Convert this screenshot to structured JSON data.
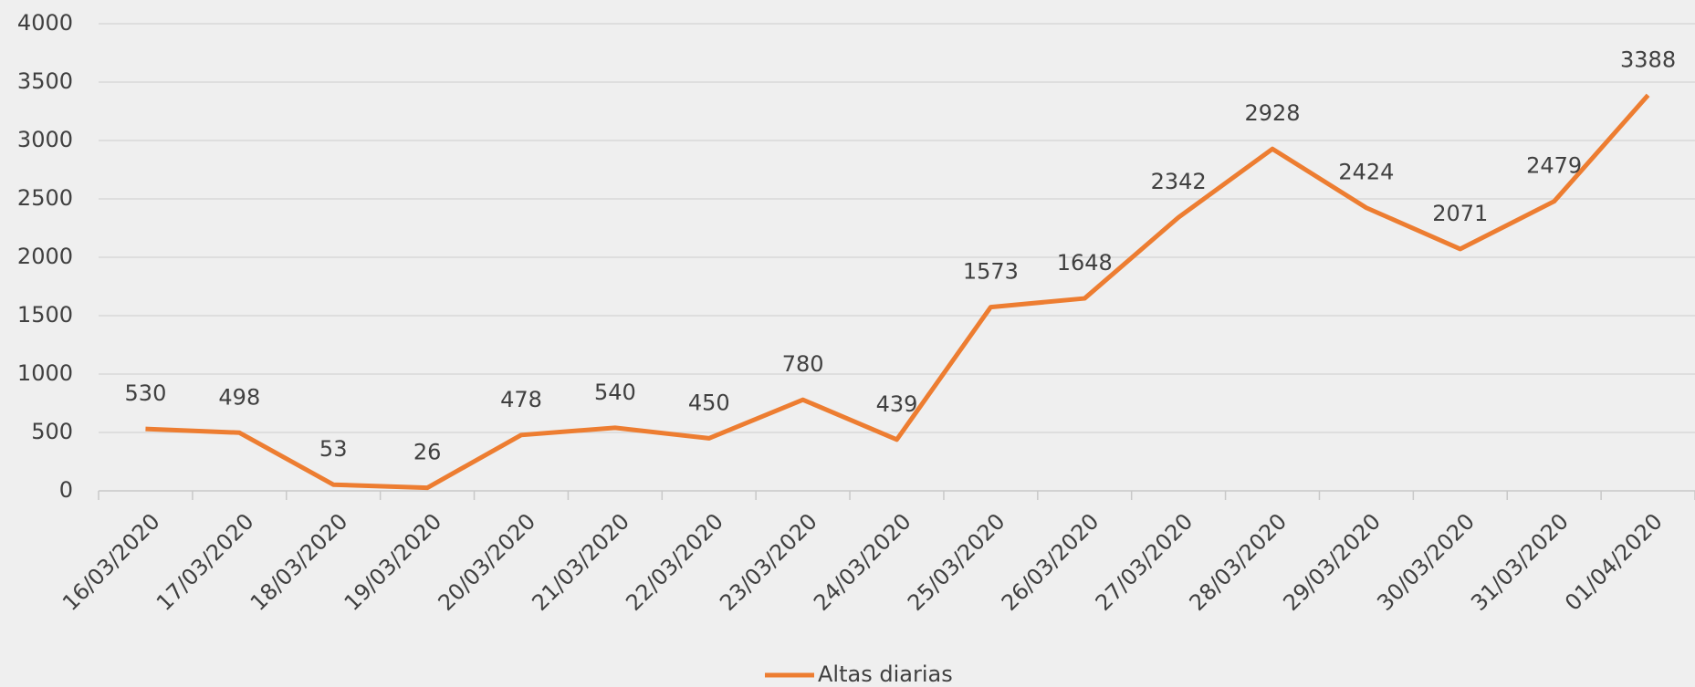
{
  "chart_data": {
    "type": "line",
    "categories": [
      "16/03/2020",
      "17/03/2020",
      "18/03/2020",
      "19/03/2020",
      "20/03/2020",
      "21/03/2020",
      "22/03/2020",
      "23/03/2020",
      "24/03/2020",
      "25/03/2020",
      "26/03/2020",
      "27/03/2020",
      "28/03/2020",
      "29/03/2020",
      "30/03/2020",
      "31/03/2020",
      "01/04/2020"
    ],
    "series": [
      {
        "name": "Altas diarias",
        "color": "#ed7d31",
        "values": [
          530,
          498,
          53,
          26,
          478,
          540,
          450,
          780,
          439,
          1573,
          1648,
          2342,
          2928,
          2424,
          2071,
          2479,
          3388
        ]
      }
    ],
    "ylim": [
      0,
      4000
    ],
    "yticks": [
      0,
      500,
      1000,
      1500,
      2000,
      2500,
      3000,
      3500,
      4000
    ],
    "grid": true,
    "legend": "bottom"
  }
}
